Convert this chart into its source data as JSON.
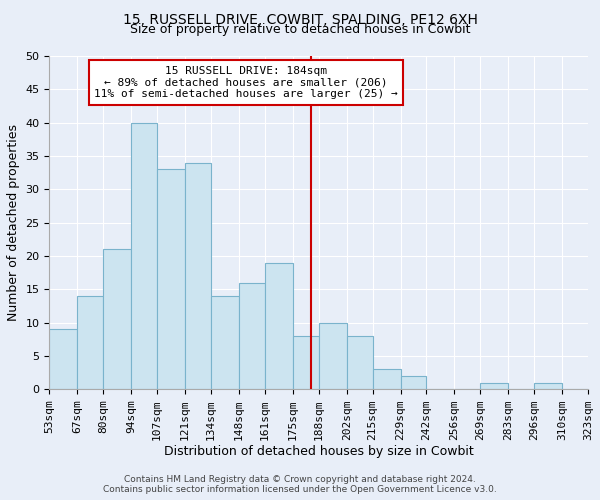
{
  "title": "15, RUSSELL DRIVE, COWBIT, SPALDING, PE12 6XH",
  "subtitle": "Size of property relative to detached houses in Cowbit",
  "xlabel": "Distribution of detached houses by size in Cowbit",
  "ylabel": "Number of detached properties",
  "bin_edges": [
    53,
    67,
    80,
    94,
    107,
    121,
    134,
    148,
    161,
    175,
    188,
    202,
    215,
    229,
    242,
    256,
    269,
    283,
    296,
    310,
    323
  ],
  "bin_labels": [
    "53sqm",
    "67sqm",
    "80sqm",
    "94sqm",
    "107sqm",
    "121sqm",
    "134sqm",
    "148sqm",
    "161sqm",
    "175sqm",
    "188sqm",
    "202sqm",
    "215sqm",
    "229sqm",
    "242sqm",
    "256sqm",
    "269sqm",
    "283sqm",
    "296sqm",
    "310sqm",
    "323sqm"
  ],
  "counts": [
    9,
    14,
    21,
    40,
    33,
    34,
    14,
    16,
    19,
    8,
    10,
    8,
    3,
    2,
    0,
    0,
    1,
    0,
    1,
    0
  ],
  "bar_color": "#cce4f0",
  "bar_edge_color": "#7ab3cc",
  "vline_x": 184,
  "vline_color": "#cc0000",
  "ylim": [
    0,
    50
  ],
  "yticks": [
    0,
    5,
    10,
    15,
    20,
    25,
    30,
    35,
    40,
    45,
    50
  ],
  "annotation_title": "15 RUSSELL DRIVE: 184sqm",
  "annotation_line1": "← 89% of detached houses are smaller (206)",
  "annotation_line2": "11% of semi-detached houses are larger (25) →",
  "annotation_box_color": "#ffffff",
  "annotation_box_edge": "#cc0000",
  "footnote1": "Contains HM Land Registry data © Crown copyright and database right 2024.",
  "footnote2": "Contains public sector information licensed under the Open Government Licence v3.0.",
  "background_color": "#e8eef8",
  "grid_color": "#ffffff",
  "title_fontsize": 10,
  "subtitle_fontsize": 9,
  "axis_label_fontsize": 9,
  "tick_fontsize": 8,
  "annotation_fontsize": 8,
  "footnote_fontsize": 6.5
}
